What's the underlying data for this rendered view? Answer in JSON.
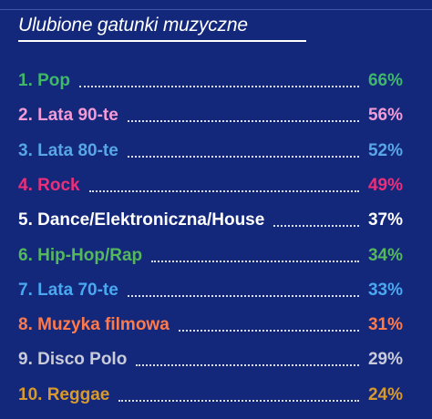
{
  "chart_data": {
    "type": "table",
    "title": "Ulubione gatunki muzyczne",
    "rows": [
      {
        "label": "1. Pop",
        "value_label": "66%",
        "value": 66,
        "color": "#3fb86a"
      },
      {
        "label": "2. Lata 90-te",
        "value_label": "56%",
        "value": 56,
        "color": "#f39bd6"
      },
      {
        "label": "3. Lata 80-te",
        "value_label": "52%",
        "value": 52,
        "color": "#58a6e6"
      },
      {
        "label": "4. Rock",
        "value_label": "49%",
        "value": 49,
        "color": "#ec2f7a"
      },
      {
        "label": "5. Dance/Elektroniczna/House",
        "value_label": "37%",
        "value": 37,
        "color": "#ffffff"
      },
      {
        "label": "6. Hip-Hop/Rap",
        "value_label": "34%",
        "value": 34,
        "color": "#55b85c"
      },
      {
        "label": "7. Lata 70-te",
        "value_label": "33%",
        "value": 33,
        "color": "#4aa8f0"
      },
      {
        "label": "8. Muzyka filmowa",
        "value_label": "31%",
        "value": 31,
        "color": "#ff7a4a"
      },
      {
        "label": "9. Disco Polo",
        "value_label": "29%",
        "value": 29,
        "color": "#c9cbd8"
      },
      {
        "label": "10. Reggae",
        "value_label": "24%",
        "value": 24,
        "color": "#d99a2b"
      }
    ]
  }
}
